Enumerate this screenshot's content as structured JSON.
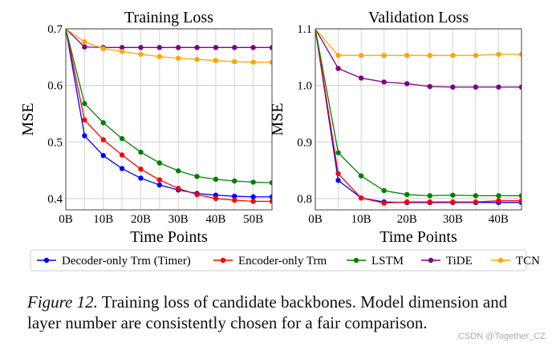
{
  "chart_data": [
    {
      "type": "line",
      "title": "Training Loss",
      "xlabel": "Time Points",
      "ylabel": "MSE",
      "x": [
        0,
        5,
        10,
        15,
        20,
        25,
        30,
        35,
        40,
        45,
        50,
        55
      ],
      "xticks": [
        0,
        10,
        20,
        30,
        40,
        50
      ],
      "xtick_labels": [
        "0B",
        "10B",
        "20B",
        "30B",
        "40B",
        "50B"
      ],
      "yticks": [
        0.4,
        0.5,
        0.6,
        0.7
      ],
      "ytick_labels": [
        "0.4",
        "0.5",
        "0.6",
        "0.7"
      ],
      "xlim": [
        0,
        55
      ],
      "ylim": [
        0.38,
        0.7
      ],
      "grid": true,
      "series": [
        {
          "name": "Decoder-only Trm (Timer)",
          "color": "#0000ff",
          "values": [
            0.7,
            0.511,
            0.476,
            0.453,
            0.436,
            0.424,
            0.415,
            0.409,
            0.406,
            0.404,
            0.403,
            0.403
          ]
        },
        {
          "name": "Encoder-only Trm",
          "color": "#ff0000",
          "values": [
            0.7,
            0.539,
            0.504,
            0.477,
            0.452,
            0.433,
            0.418,
            0.407,
            0.4,
            0.397,
            0.395,
            0.395
          ]
        },
        {
          "name": "LSTM",
          "color": "#008000",
          "values": [
            0.7,
            0.568,
            0.534,
            0.506,
            0.482,
            0.463,
            0.449,
            0.439,
            0.434,
            0.431,
            0.429,
            0.428
          ]
        },
        {
          "name": "TiDE",
          "color": "#800080",
          "values": [
            0.7,
            0.668,
            0.667,
            0.667,
            0.667,
            0.667,
            0.667,
            0.667,
            0.667,
            0.667,
            0.667,
            0.667
          ]
        },
        {
          "name": "TCN",
          "color": "#ffa500",
          "values": [
            0.7,
            0.677,
            0.665,
            0.66,
            0.655,
            0.651,
            0.648,
            0.646,
            0.644,
            0.642,
            0.641,
            0.641
          ]
        }
      ]
    },
    {
      "type": "line",
      "title": "Validation Loss",
      "xlabel": "Time Points",
      "ylabel": "MSE",
      "x": [
        0,
        5,
        10,
        15,
        20,
        25,
        30,
        35,
        40,
        45
      ],
      "xticks": [
        0,
        10,
        20,
        30,
        40
      ],
      "xtick_labels": [
        "0B",
        "10B",
        "20B",
        "30B",
        "40B"
      ],
      "yticks": [
        0.8,
        0.9,
        1.0,
        1.1
      ],
      "ytick_labels": [
        "0.8",
        "0.9",
        "1.0",
        "1.1"
      ],
      "xlim": [
        0,
        45
      ],
      "ylim": [
        0.78,
        1.1
      ],
      "grid": true,
      "series": [
        {
          "name": "Decoder-only Trm (Timer)",
          "color": "#0000ff",
          "values": [
            1.1,
            0.832,
            0.801,
            0.794,
            0.793,
            0.793,
            0.793,
            0.793,
            0.793,
            0.793
          ]
        },
        {
          "name": "Encoder-only Trm",
          "color": "#ff0000",
          "values": [
            1.1,
            0.844,
            0.801,
            0.792,
            0.794,
            0.794,
            0.794,
            0.794,
            0.796,
            0.796
          ]
        },
        {
          "name": "LSTM",
          "color": "#008000",
          "values": [
            1.1,
            0.881,
            0.84,
            0.814,
            0.807,
            0.805,
            0.806,
            0.805,
            0.805,
            0.805
          ]
        },
        {
          "name": "TiDE",
          "color": "#800080",
          "values": [
            1.1,
            1.03,
            1.013,
            1.006,
            1.003,
            0.998,
            0.997,
            0.997,
            0.997,
            0.997
          ]
        },
        {
          "name": "TCN",
          "color": "#ffa500",
          "values": [
            1.1,
            1.053,
            1.053,
            1.053,
            1.053,
            1.053,
            1.053,
            1.053,
            1.055,
            1.055
          ]
        }
      ]
    }
  ],
  "legend": {
    "placement": "bottom",
    "items": [
      "Decoder-only Trm (Timer)",
      "Encoder-only Trm",
      "LSTM",
      "TiDE",
      "TCN"
    ]
  },
  "caption": {
    "label": "Figure 12.",
    "text": " Training loss of candidate backbones. Model dimension and layer number are consistently chosen for a fair comparison."
  },
  "watermark": "CSDN @Together_CZ"
}
